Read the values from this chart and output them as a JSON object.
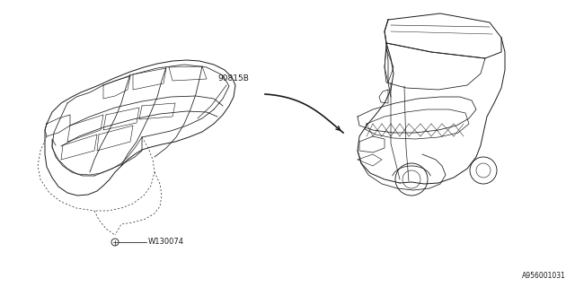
{
  "bg_color": "#ffffff",
  "line_color": "#1a1a1a",
  "label_90815B": "90815B",
  "label_W130074": "W130074",
  "label_bottom_right": "A956001031",
  "fig_width": 6.4,
  "fig_height": 3.2,
  "dpi": 100
}
